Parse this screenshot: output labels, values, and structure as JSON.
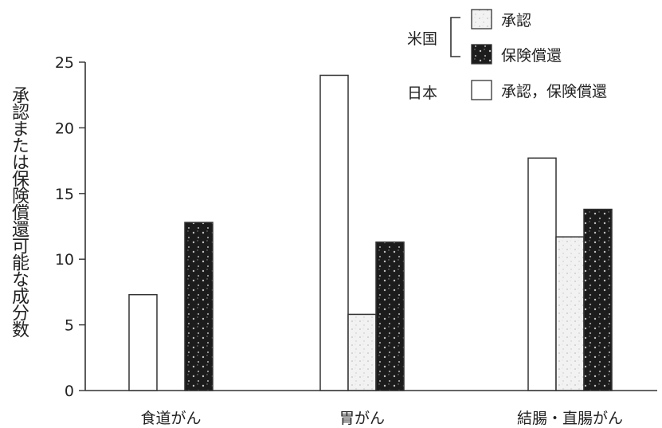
{
  "chart_data": {
    "type": "bar",
    "title": "",
    "xlabel": "",
    "ylabel": "承認または保険償還可能な成分数",
    "ylim": [
      0,
      25
    ],
    "yticks": [
      0,
      5,
      10,
      15,
      20,
      25
    ],
    "grid": false,
    "legend_position": "top-right",
    "categories": [
      "食道がん",
      "胃がん",
      "結腸・直腸がん"
    ],
    "series": [
      {
        "key": "japan",
        "values": [
          7.3,
          24,
          17.7
        ]
      },
      {
        "key": "us_approval",
        "values": [
          0,
          5.8,
          11.7
        ]
      },
      {
        "key": "us_reimbursement",
        "values": [
          12.8,
          11.3,
          13.8
        ]
      }
    ],
    "legend": {
      "us_group_label": "米国",
      "us_approval_label": "承認",
      "us_reimbursement_label": "保険償還",
      "japan_group_label": "日本",
      "japan_label": "承認，保険償還"
    },
    "colors": {
      "japan": "#ffffff",
      "us_approval": "#ebebeb",
      "us_reimbursement": "#1c1c1c",
      "axis": "#333333"
    }
  }
}
